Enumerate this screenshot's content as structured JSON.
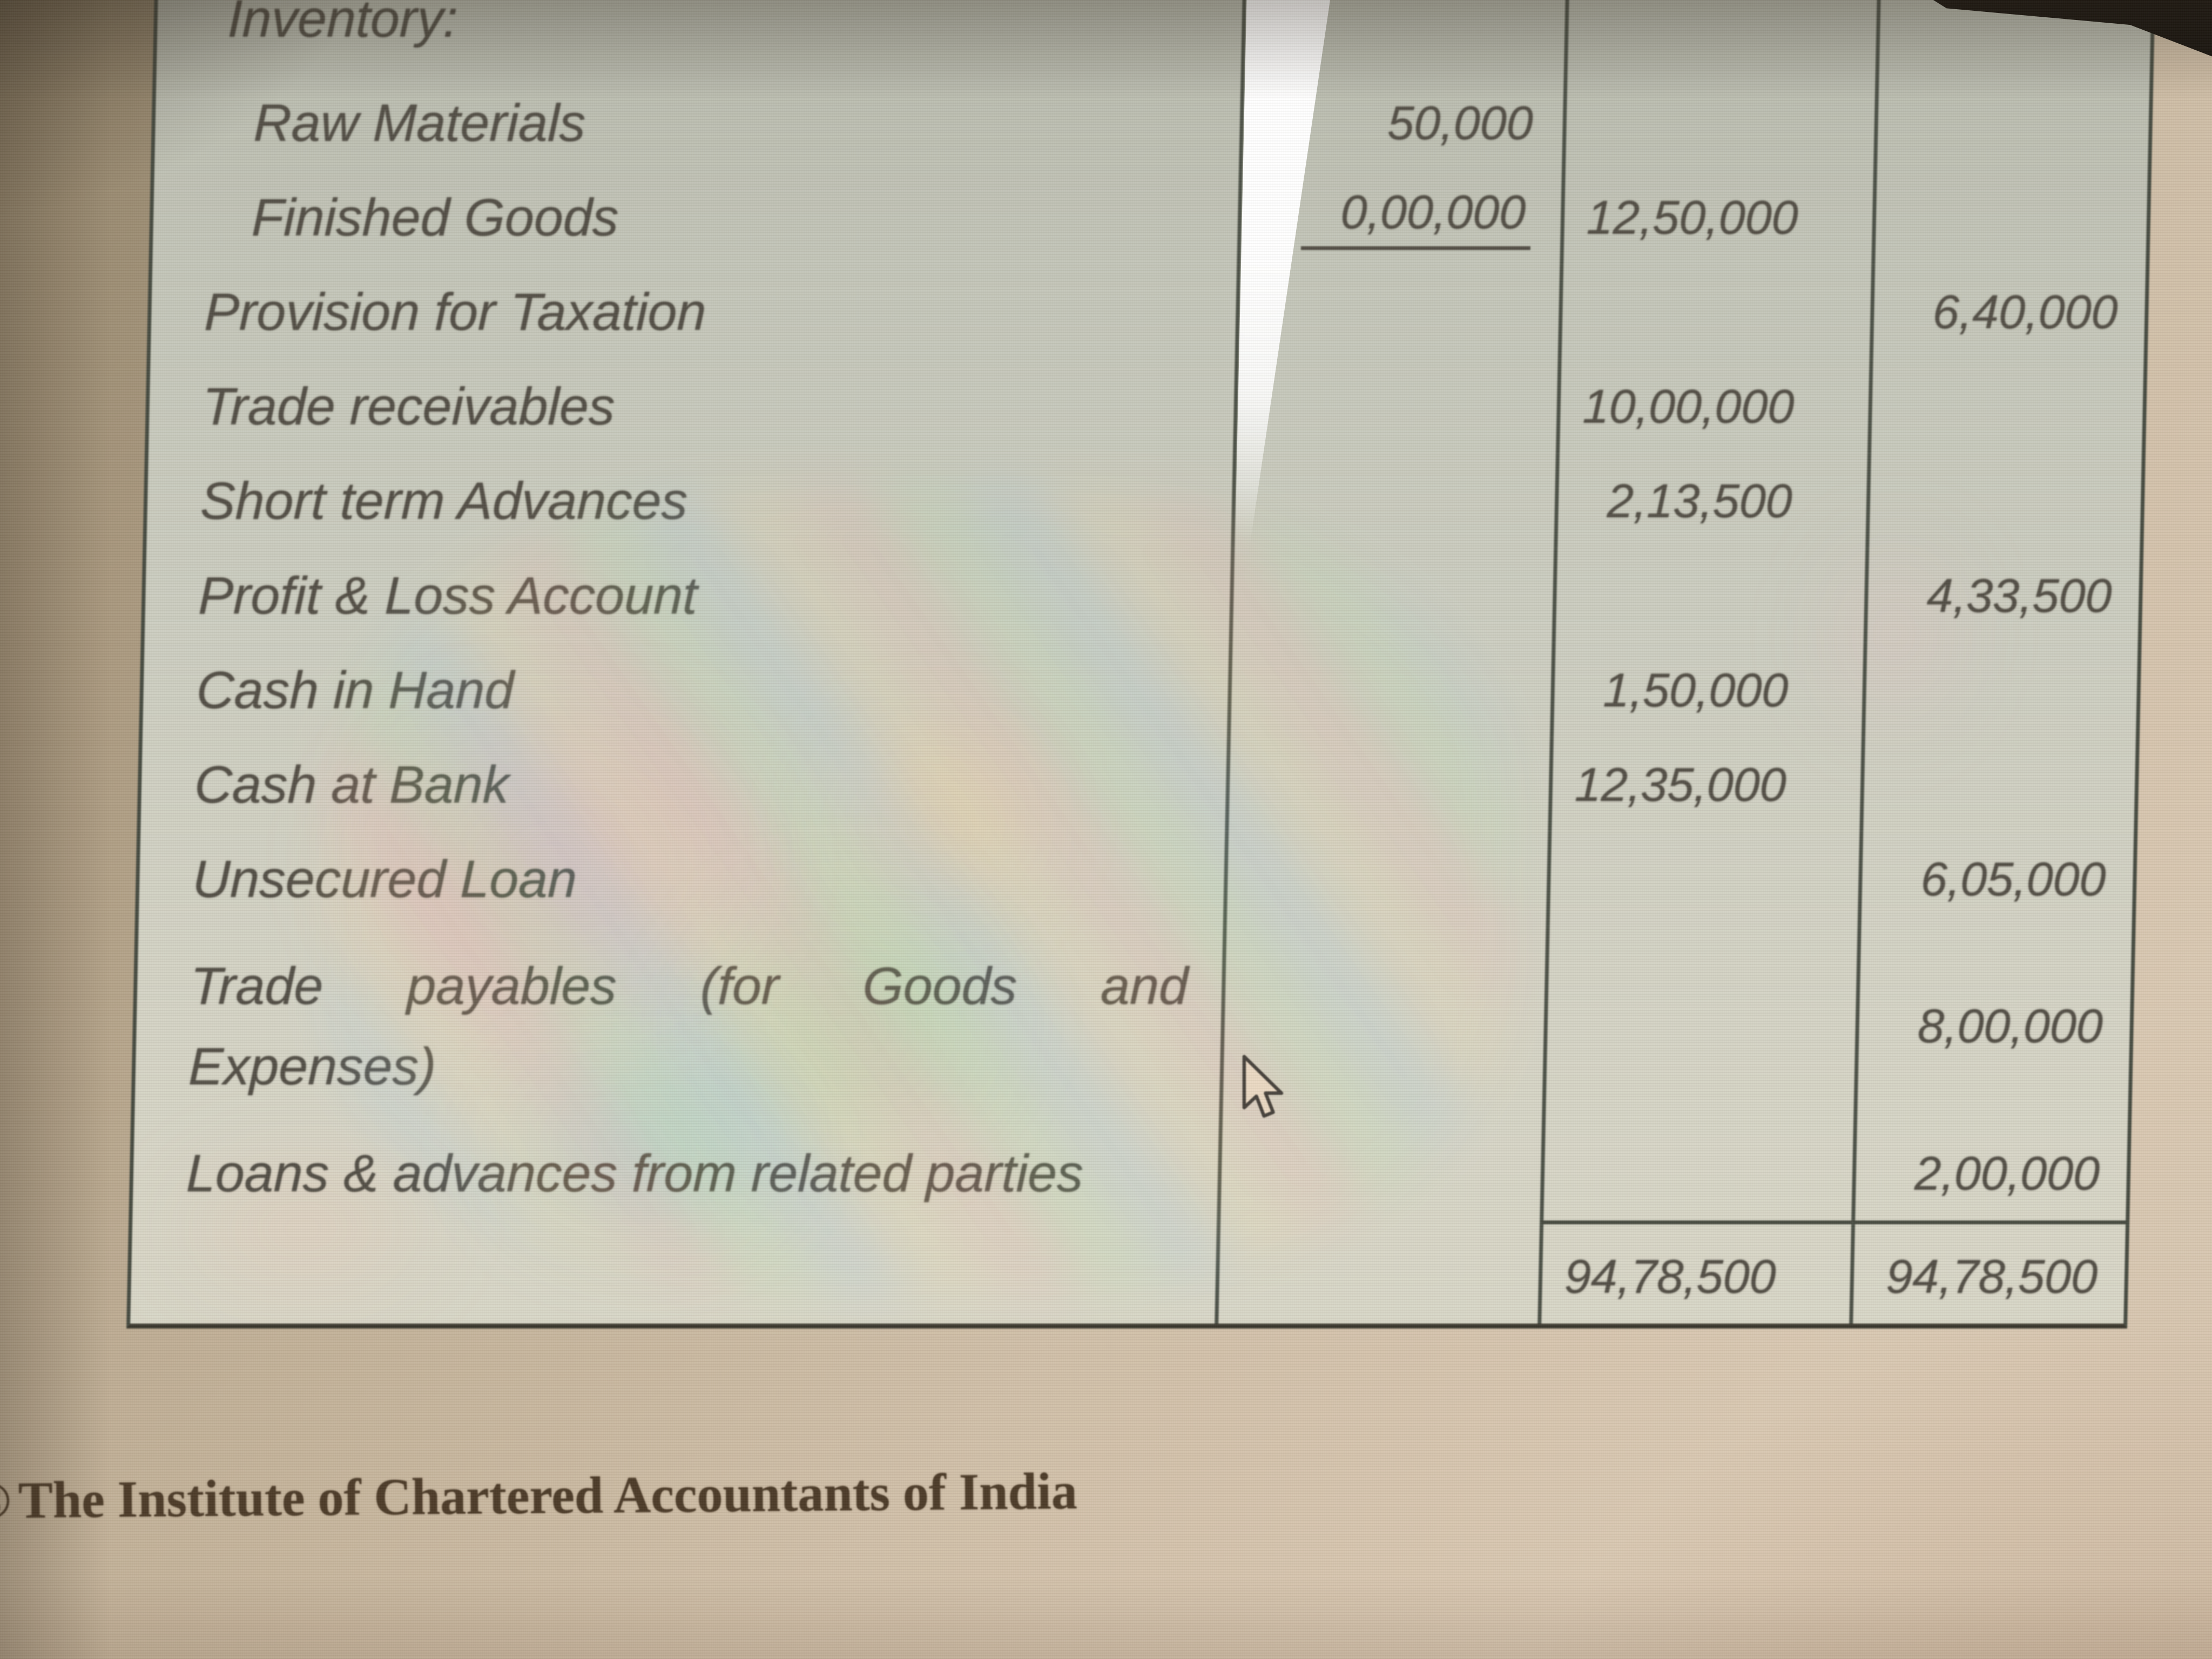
{
  "table": {
    "rows": [
      {
        "label": "Inventory:",
        "a1": "",
        "a2": "",
        "a3": "",
        "cls": "section"
      },
      {
        "label": "Raw Materials",
        "a1": "50,000",
        "a2": "",
        "a3": "",
        "cls": "indent"
      },
      {
        "label": "Finished Goods",
        "a1": "0,00,000",
        "a2": "12,50,000",
        "a3": "",
        "cls": "indent",
        "u1": true
      },
      {
        "label": "Provision for Taxation",
        "a1": "",
        "a2": "",
        "a3": "6,40,000",
        "cls": ""
      },
      {
        "label": "Trade receivables",
        "a1": "",
        "a2": "10,00,000",
        "a3": "",
        "cls": ""
      },
      {
        "label": "Short term Advances",
        "a1": "",
        "a2": "2,13,500",
        "a3": "",
        "cls": ""
      },
      {
        "label": "Profit & Loss Account",
        "a1": "",
        "a2": "",
        "a3": "4,33,500",
        "cls": ""
      },
      {
        "label": "Cash in Hand",
        "a1": "",
        "a2": "1,50,000",
        "a3": "",
        "cls": ""
      },
      {
        "label": "Cash at Bank",
        "a1": "",
        "a2": "12,35,000",
        "a3": "",
        "cls": ""
      },
      {
        "label": "Unsecured Loan",
        "a1": "",
        "a2": "",
        "a3": "6,05,000",
        "cls": ""
      },
      {
        "label": "Trade payables (for Goods and",
        "label2": "Expenses)",
        "a1": "",
        "a2": "",
        "a3": "8,00,000",
        "cls": "r-tall"
      },
      {
        "label": "Loans & advances from related parties",
        "a1": "",
        "a2": "",
        "a3": "2,00,000",
        "cls": ""
      }
    ],
    "totals": {
      "a2": "94,78,500",
      "a3": "94,78,500"
    }
  },
  "footer": {
    "copyright": "©",
    "text": "The Institute of Chartered Accountants of India"
  },
  "colors": {
    "table_line": "#4b5046",
    "table_text": "#524e45",
    "table_bg_top": "#b4b6aa",
    "table_bg_bottom": "#d8d6c7",
    "page_bg": "#c2b198",
    "footer_text": "#4b3a27",
    "glare": "#ffffff",
    "top_band": "#16120d"
  }
}
